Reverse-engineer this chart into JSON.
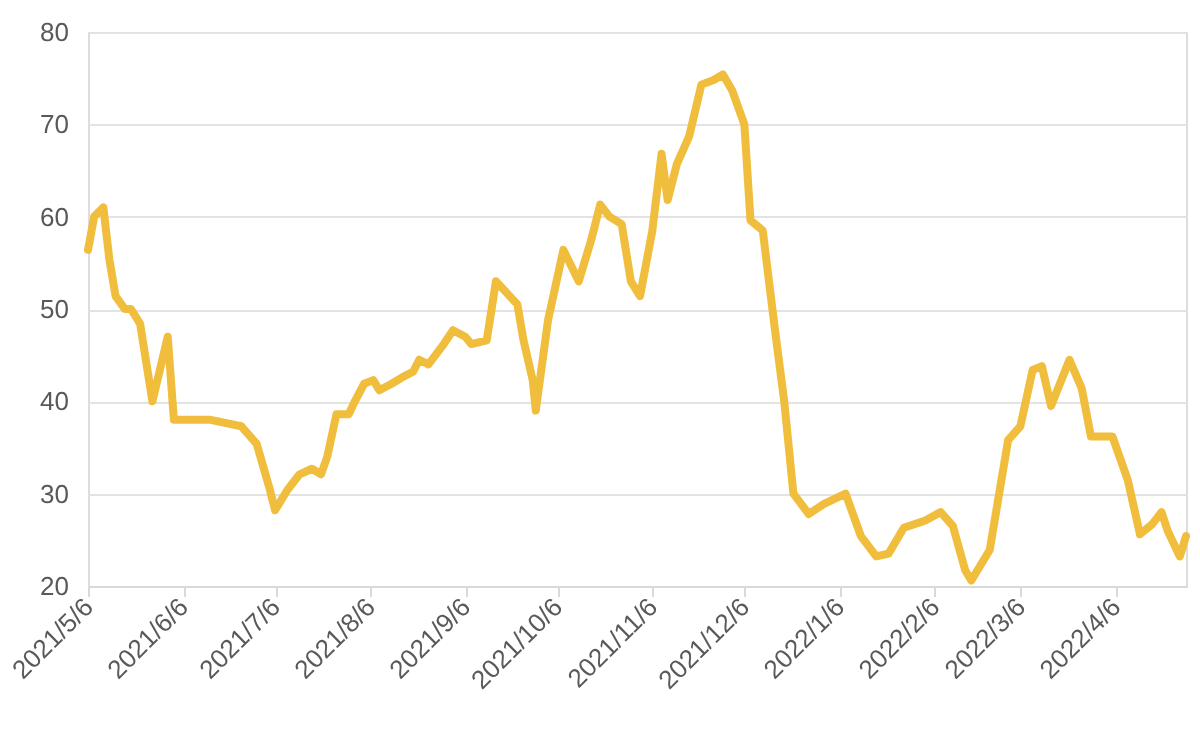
{
  "chart_data": {
    "type": "line",
    "x": [
      "2021-05-06",
      "2021-05-08",
      "2021-05-11",
      "2021-05-13",
      "2021-05-15",
      "2021-05-18",
      "2021-05-20",
      "2021-05-23",
      "2021-05-27",
      "2021-06-01",
      "2021-06-03",
      "2021-06-08",
      "2021-06-15",
      "2021-06-25",
      "2021-06-30",
      "2021-07-04",
      "2021-07-06",
      "2021-07-10",
      "2021-07-14",
      "2021-07-18",
      "2021-07-21",
      "2021-07-23",
      "2021-07-26",
      "2021-07-30",
      "2021-08-01",
      "2021-08-04",
      "2021-08-07",
      "2021-08-09",
      "2021-08-13",
      "2021-08-17",
      "2021-08-20",
      "2021-08-22",
      "2021-08-25",
      "2021-08-30",
      "2021-09-02",
      "2021-09-06",
      "2021-09-08",
      "2021-09-13",
      "2021-09-16",
      "2021-09-23",
      "2021-09-25",
      "2021-09-28",
      "2021-09-29",
      "2021-10-03",
      "2021-10-08",
      "2021-10-13",
      "2021-10-17",
      "2021-10-20",
      "2021-10-23",
      "2021-10-27",
      "2021-10-30",
      "2021-11-02",
      "2021-11-06",
      "2021-11-09",
      "2021-11-11",
      "2021-11-14",
      "2021-11-18",
      "2021-11-22",
      "2021-11-26",
      "2021-11-29",
      "2021-12-02",
      "2021-12-06",
      "2021-12-08",
      "2021-12-12",
      "2021-12-16",
      "2021-12-19",
      "2021-12-22",
      "2021-12-27",
      "2022-01-01",
      "2022-01-08",
      "2022-01-13",
      "2022-01-18",
      "2022-01-22",
      "2022-01-27",
      "2022-02-03",
      "2022-02-08",
      "2022-02-12",
      "2022-02-16",
      "2022-02-18",
      "2022-02-24",
      "2022-03-02",
      "2022-03-06",
      "2022-03-10",
      "2022-03-13",
      "2022-03-16",
      "2022-03-22",
      "2022-03-26",
      "2022-03-29",
      "2022-04-05",
      "2022-04-10",
      "2022-04-14",
      "2022-04-18",
      "2022-04-21",
      "2022-04-23",
      "2022-04-27",
      "2022-04-29"
    ],
    "series": [
      {
        "color": "#f0be3c",
        "values": [
          56.4,
          60,
          61,
          55.3,
          51.4,
          50,
          50,
          48.4,
          40,
          47,
          38,
          38,
          38,
          37.3,
          35.4,
          30.8,
          28.2,
          30.4,
          32.1,
          32.7,
          32.1,
          34,
          38.6,
          38.6,
          40,
          41.9,
          42.3,
          41.2,
          41.9,
          42.7,
          43.2,
          44.5,
          44,
          46.2,
          47.7,
          47,
          46.2,
          46.6,
          53,
          50.5,
          46.6,
          42.3,
          39,
          48.8,
          56.4,
          53,
          57.4,
          61.3,
          60,
          59.2,
          53,
          51.4,
          58.5,
          66.8,
          61.8,
          65.7,
          68.7,
          74.3,
          74.8,
          75.4,
          73.7,
          70,
          59.6,
          58.5,
          47.7,
          40,
          30,
          27.8,
          28.9,
          30,
          25.4,
          23.2,
          23.5,
          26.3,
          27.1,
          28,
          26.5,
          21.7,
          20.6,
          23.9,
          35.8,
          37.3,
          43.4,
          43.8,
          39.5,
          44.5,
          41.4,
          36.2,
          36.2,
          31.5,
          25.6,
          26.7,
          28,
          26,
          23.2,
          25.4
        ]
      }
    ],
    "xlim": [
      "2021-05-06",
      "2022-04-29"
    ],
    "xticks": [
      {
        "value": "2021-05-06",
        "label": "2021/5/6"
      },
      {
        "value": "2021-06-06",
        "label": "2021/6/6"
      },
      {
        "value": "2021-07-06",
        "label": "2021/7/6"
      },
      {
        "value": "2021-08-06",
        "label": "2021/8/6"
      },
      {
        "value": "2021-09-06",
        "label": "2021/9/6"
      },
      {
        "value": "2021-10-06",
        "label": "2021/10/6"
      },
      {
        "value": "2021-11-06",
        "label": "2021/11/6"
      },
      {
        "value": "2021-12-06",
        "label": "2021/12/6"
      },
      {
        "value": "2022-01-06",
        "label": "2022/1/6"
      },
      {
        "value": "2022-02-06",
        "label": "2022/2/6"
      },
      {
        "value": "2022-03-06",
        "label": "2022/3/6"
      },
      {
        "value": "2022-04-06",
        "label": "2022/4/6"
      }
    ],
    "ylim": [
      20,
      80
    ],
    "yticks": [
      20,
      30,
      40,
      50,
      60,
      70,
      80
    ],
    "grid": "y",
    "line_style": "solid",
    "marker": "none"
  }
}
